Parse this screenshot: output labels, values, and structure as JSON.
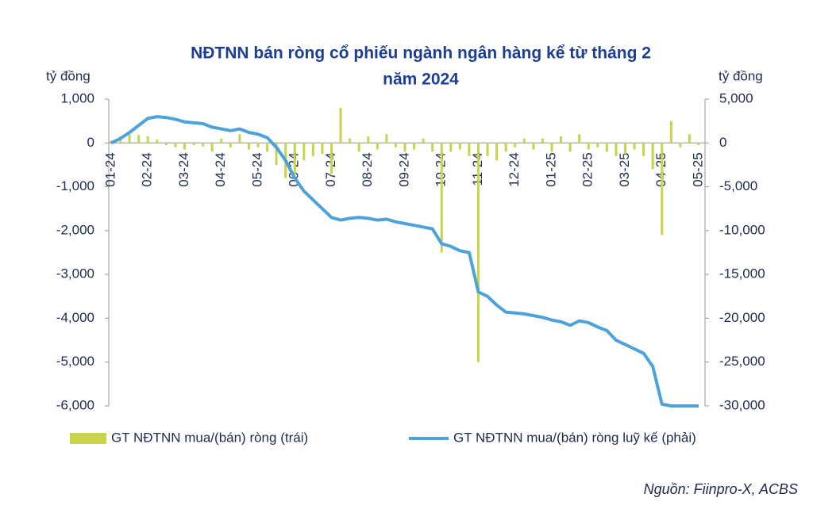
{
  "chart_data": {
    "type": "bar_line",
    "title_lines": [
      "NĐTNN bán ròng cổ phiếu ngành ngân hàng kể từ tháng 2",
      "năm 2024"
    ],
    "y_label": "tỷ đồng",
    "y2_label": "tỷ đồng",
    "x_labels": [
      "01-24",
      "02-24",
      "03-24",
      "04-24",
      "05-24",
      "06-24",
      "07-24",
      "08-24",
      "09-24",
      "10-24",
      "11-24",
      "12-24",
      "01-25",
      "02-25",
      "03-25",
      "04-25",
      "05-25"
    ],
    "ylim": [
      -6000,
      1000
    ],
    "yticks": [
      {
        "value": 1000,
        "label": "1,000"
      },
      0,
      {
        "value": -1000,
        "label": "-1,000"
      },
      {
        "value": -2000,
        "label": "-2,000"
      },
      {
        "value": -3000,
        "label": "-3,000"
      },
      {
        "value": -4000,
        "label": "-4,000"
      },
      {
        "value": -5000,
        "label": "-5,000"
      },
      {
        "value": -6000,
        "label": "-6,000"
      }
    ],
    "y2lim": [
      -30000,
      5000
    ],
    "y2ticks": [
      {
        "value": 5000,
        "label": "5,000"
      },
      0,
      {
        "value": -5000,
        "label": "-5,000"
      },
      {
        "value": -10000,
        "label": "-10,000"
      },
      {
        "value": -15000,
        "label": "-15,000"
      },
      {
        "value": -20000,
        "label": "-20,000"
      },
      {
        "value": -25000,
        "label": "-25,000"
      },
      {
        "value": -30000,
        "label": "-30,000"
      }
    ],
    "series": [
      {
        "name": "GT NĐTNN mua/(bán) ròng (trái)",
        "kind": "bar",
        "color": "#c8d44a",
        "values": [
          50,
          150,
          200,
          180,
          150,
          80,
          -50,
          -100,
          -150,
          -50,
          -80,
          -200,
          100,
          -100,
          200,
          -150,
          -100,
          -200,
          -500,
          -800,
          -700,
          -400,
          -300,
          -250,
          -700,
          800,
          100,
          -200,
          150,
          -150,
          200,
          -100,
          -200,
          -150,
          100,
          -200,
          -2500,
          -200,
          -150,
          -300,
          -5000,
          -300,
          -400,
          -200,
          -100,
          100,
          -150,
          100,
          -200,
          150,
          -200,
          200,
          -150,
          -100,
          -200,
          -300,
          -250,
          -150,
          -300,
          -600,
          -2100,
          500,
          -100,
          200,
          -50
        ]
      },
      {
        "name": "GT NĐTNN mua/(bán) ròng luỹ kế (phải)",
        "kind": "line",
        "axis": "y2",
        "color": "#4ba3d9",
        "values": [
          0,
          500,
          1200,
          2000,
          2800,
          3000,
          2900,
          2700,
          2400,
          2300,
          2200,
          1800,
          1600,
          1400,
          1600,
          1200,
          1000,
          600,
          -500,
          -2000,
          -4000,
          -5500,
          -6500,
          -7500,
          -8500,
          -8800,
          -8600,
          -8500,
          -8600,
          -8800,
          -8700,
          -9000,
          -9200,
          -9400,
          -9600,
          -9800,
          -11500,
          -11800,
          -12300,
          -12500,
          -17000,
          -17500,
          -18500,
          -19300,
          -19400,
          -19500,
          -19700,
          -19900,
          -20200,
          -20400,
          -20800,
          -20300,
          -20500,
          -21000,
          -21400,
          -22500,
          -23000,
          -23500,
          -24000,
          -25500,
          -29800,
          -30000,
          -30000,
          -30000,
          -30000
        ]
      }
    ],
    "source": "Nguồn: Fiinpro-X, ACBS"
  }
}
